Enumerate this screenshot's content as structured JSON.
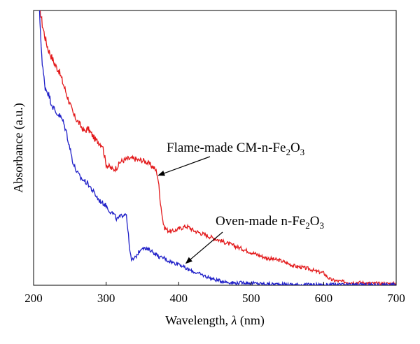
{
  "chart_data": {
    "type": "line",
    "title": "",
    "xlabel_text": "Wavelength, ",
    "xlabel_symbol": "λ",
    "xlabel_unit": " (nm)",
    "ylabel": "Absorbance (a.u.)",
    "xlim": [
      200,
      700
    ],
    "ylim": [
      0,
      1
    ],
    "x_ticks": [
      200,
      300,
      400,
      500,
      600,
      700
    ],
    "x_tick_labels": [
      "200",
      "300",
      "400",
      "500",
      "600",
      "700"
    ],
    "show_y_tick_labels": false,
    "grid": false,
    "series": [
      {
        "color": "#e31a1c",
        "x": [
          208,
          212,
          216,
          220,
          225,
          230,
          235,
          240,
          245,
          250,
          255,
          260,
          265,
          270,
          275,
          280,
          285,
          290,
          295,
          300,
          305,
          310,
          315,
          320,
          325,
          330,
          335,
          340,
          345,
          350,
          355,
          360,
          365,
          368,
          370,
          372,
          375,
          378,
          380,
          385,
          390,
          395,
          400,
          405,
          410,
          415,
          420,
          425,
          430,
          440,
          450,
          460,
          470,
          480,
          490,
          500,
          510,
          520,
          530,
          540,
          550,
          560,
          570,
          580,
          590,
          600,
          605,
          610,
          620,
          630,
          640,
          650,
          660,
          670,
          680,
          690,
          700
        ],
        "y": [
          1.02,
          0.95,
          0.9,
          0.86,
          0.83,
          0.8,
          0.78,
          0.74,
          0.7,
          0.66,
          0.62,
          0.6,
          0.58,
          0.56,
          0.57,
          0.55,
          0.53,
          0.52,
          0.51,
          0.44,
          0.43,
          0.42,
          0.43,
          0.45,
          0.455,
          0.46,
          0.46,
          0.46,
          0.455,
          0.455,
          0.45,
          0.44,
          0.43,
          0.42,
          0.41,
          0.38,
          0.3,
          0.24,
          0.21,
          0.2,
          0.195,
          0.2,
          0.205,
          0.21,
          0.215,
          0.21,
          0.2,
          0.195,
          0.19,
          0.18,
          0.17,
          0.16,
          0.15,
          0.14,
          0.13,
          0.12,
          0.11,
          0.1,
          0.095,
          0.09,
          0.08,
          0.07,
          0.065,
          0.06,
          0.05,
          0.045,
          0.03,
          0.02,
          0.015,
          0.012,
          0.01,
          0.01,
          0.008,
          0.007,
          0.006,
          0.006,
          0.005
        ]
      },
      {
        "color": "#1f1fc8",
        "x": [
          208,
          212,
          216,
          220,
          225,
          230,
          235,
          240,
          245,
          250,
          255,
          260,
          265,
          270,
          275,
          280,
          285,
          290,
          295,
          300,
          305,
          310,
          315,
          320,
          325,
          328,
          330,
          333,
          335,
          340,
          345,
          350,
          355,
          360,
          365,
          370,
          375,
          380,
          385,
          390,
          395,
          400,
          405,
          410,
          415,
          420,
          430,
          440,
          450,
          460,
          470,
          480,
          490,
          500,
          510,
          520,
          530,
          540,
          550,
          560,
          570,
          580,
          590,
          600,
          610,
          620,
          630,
          640,
          650,
          660,
          670,
          680,
          690,
          700
        ],
        "y": [
          1.0,
          0.8,
          0.72,
          0.7,
          0.66,
          0.63,
          0.62,
          0.6,
          0.56,
          0.5,
          0.44,
          0.41,
          0.39,
          0.38,
          0.37,
          0.35,
          0.33,
          0.31,
          0.3,
          0.29,
          0.27,
          0.26,
          0.24,
          0.25,
          0.26,
          0.26,
          0.2,
          0.12,
          0.09,
          0.1,
          0.12,
          0.14,
          0.13,
          0.13,
          0.12,
          0.11,
          0.1,
          0.1,
          0.09,
          0.085,
          0.08,
          0.08,
          0.07,
          0.06,
          0.055,
          0.05,
          0.04,
          0.03,
          0.02,
          0.015,
          0.01,
          0.008,
          0.01,
          0.008,
          0.006,
          0.005,
          0.004,
          0.004,
          0.003,
          0.003,
          0.002,
          0.002,
          0.002,
          0.002,
          0.002,
          0.002,
          0.002,
          0.002,
          0.002,
          0.002,
          0.002,
          0.002,
          0.002,
          0.002
        ]
      }
    ],
    "annotations": [
      {
        "pre": "Flame-made CM-n-Fe",
        "sub1": "2",
        "mid": "O",
        "sub2": "3",
        "arrow_to": [
          372,
          0.4
        ]
      },
      {
        "pre": "Oven-made n-Fe",
        "sub1": "2",
        "mid": "O",
        "sub2": "3",
        "arrow_to": [
          410,
          0.08
        ]
      }
    ]
  }
}
